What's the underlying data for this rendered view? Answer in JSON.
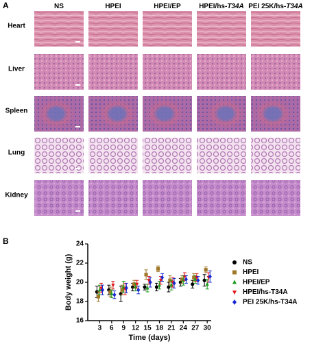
{
  "panel_labels": [
    "A",
    "B"
  ],
  "histology": {
    "columns": [
      [
        "NS"
      ],
      [
        "HPEI"
      ],
      [
        "HPEI/EP"
      ],
      [
        "HPEI/hs-",
        "T34A"
      ],
      [
        "PEI 25K/hs-",
        "T34A"
      ]
    ],
    "rows": [
      "Heart",
      "Liver",
      "Spleen",
      "Lung",
      "Kidney"
    ]
  },
  "chart_data": {
    "type": "scatter",
    "x_label": "Time (days)",
    "y_label": "Body weight (g)",
    "x": [
      3,
      6,
      9,
      12,
      15,
      18,
      21,
      24,
      27,
      30
    ],
    "xlim": [
      0,
      31
    ],
    "xticks": [
      3,
      6,
      9,
      12,
      15,
      18,
      21,
      24,
      27,
      30
    ],
    "ylim": [
      16,
      24
    ],
    "yticks": [
      16,
      18,
      20,
      22,
      24
    ],
    "series": [
      {
        "name": "NS",
        "color": "#000000",
        "marker": "circle",
        "values": [
          19.0,
          19.2,
          18.8,
          19.5,
          19.5,
          19.5,
          19.5,
          20.0,
          19.8,
          20.2
        ],
        "errors": [
          0.6,
          0.5,
          0.8,
          0.4,
          0.3,
          0.4,
          0.5,
          0.4,
          0.4,
          0.6
        ]
      },
      {
        "name": "HPEI",
        "color": "#a0782a",
        "marker": "square",
        "values": [
          18.5,
          19.0,
          19.2,
          19.8,
          20.8,
          21.4,
          20.2,
          20.3,
          20.5,
          21.3
        ],
        "errors": [
          0.5,
          0.5,
          0.5,
          0.4,
          0.5,
          0.3,
          0.5,
          0.4,
          0.4,
          0.3
        ]
      },
      {
        "name": "HPEI/EP",
        "color": "#1a9a1a",
        "marker": "triangle-up",
        "values": [
          19.2,
          18.8,
          19.5,
          19.5,
          19.4,
          19.7,
          19.7,
          20.2,
          20.3,
          19.8
        ],
        "errors": [
          0.5,
          0.4,
          0.6,
          0.4,
          0.4,
          0.4,
          0.5,
          0.5,
          0.4,
          0.5
        ]
      },
      {
        "name": "HPEI/hs-T34A",
        "color": "#e01818",
        "marker": "triangle-down",
        "values": [
          19.4,
          19.7,
          19.3,
          19.8,
          20.2,
          20.2,
          20.0,
          20.6,
          20.5,
          20.5
        ],
        "errors": [
          0.5,
          0.4,
          0.6,
          0.4,
          0.4,
          0.4,
          0.5,
          0.4,
          0.4,
          0.5
        ]
      },
      {
        "name": "PEI 25K/hs-T34A",
        "color": "#1a2ad0",
        "marker": "diamond",
        "values": [
          19.2,
          18.7,
          19.4,
          19.2,
          20.0,
          20.5,
          19.9,
          20.3,
          20.2,
          20.6
        ],
        "errors": [
          0.5,
          0.4,
          0.5,
          0.4,
          0.5,
          0.4,
          0.5,
          0.4,
          0.4,
          0.6
        ]
      }
    ]
  }
}
